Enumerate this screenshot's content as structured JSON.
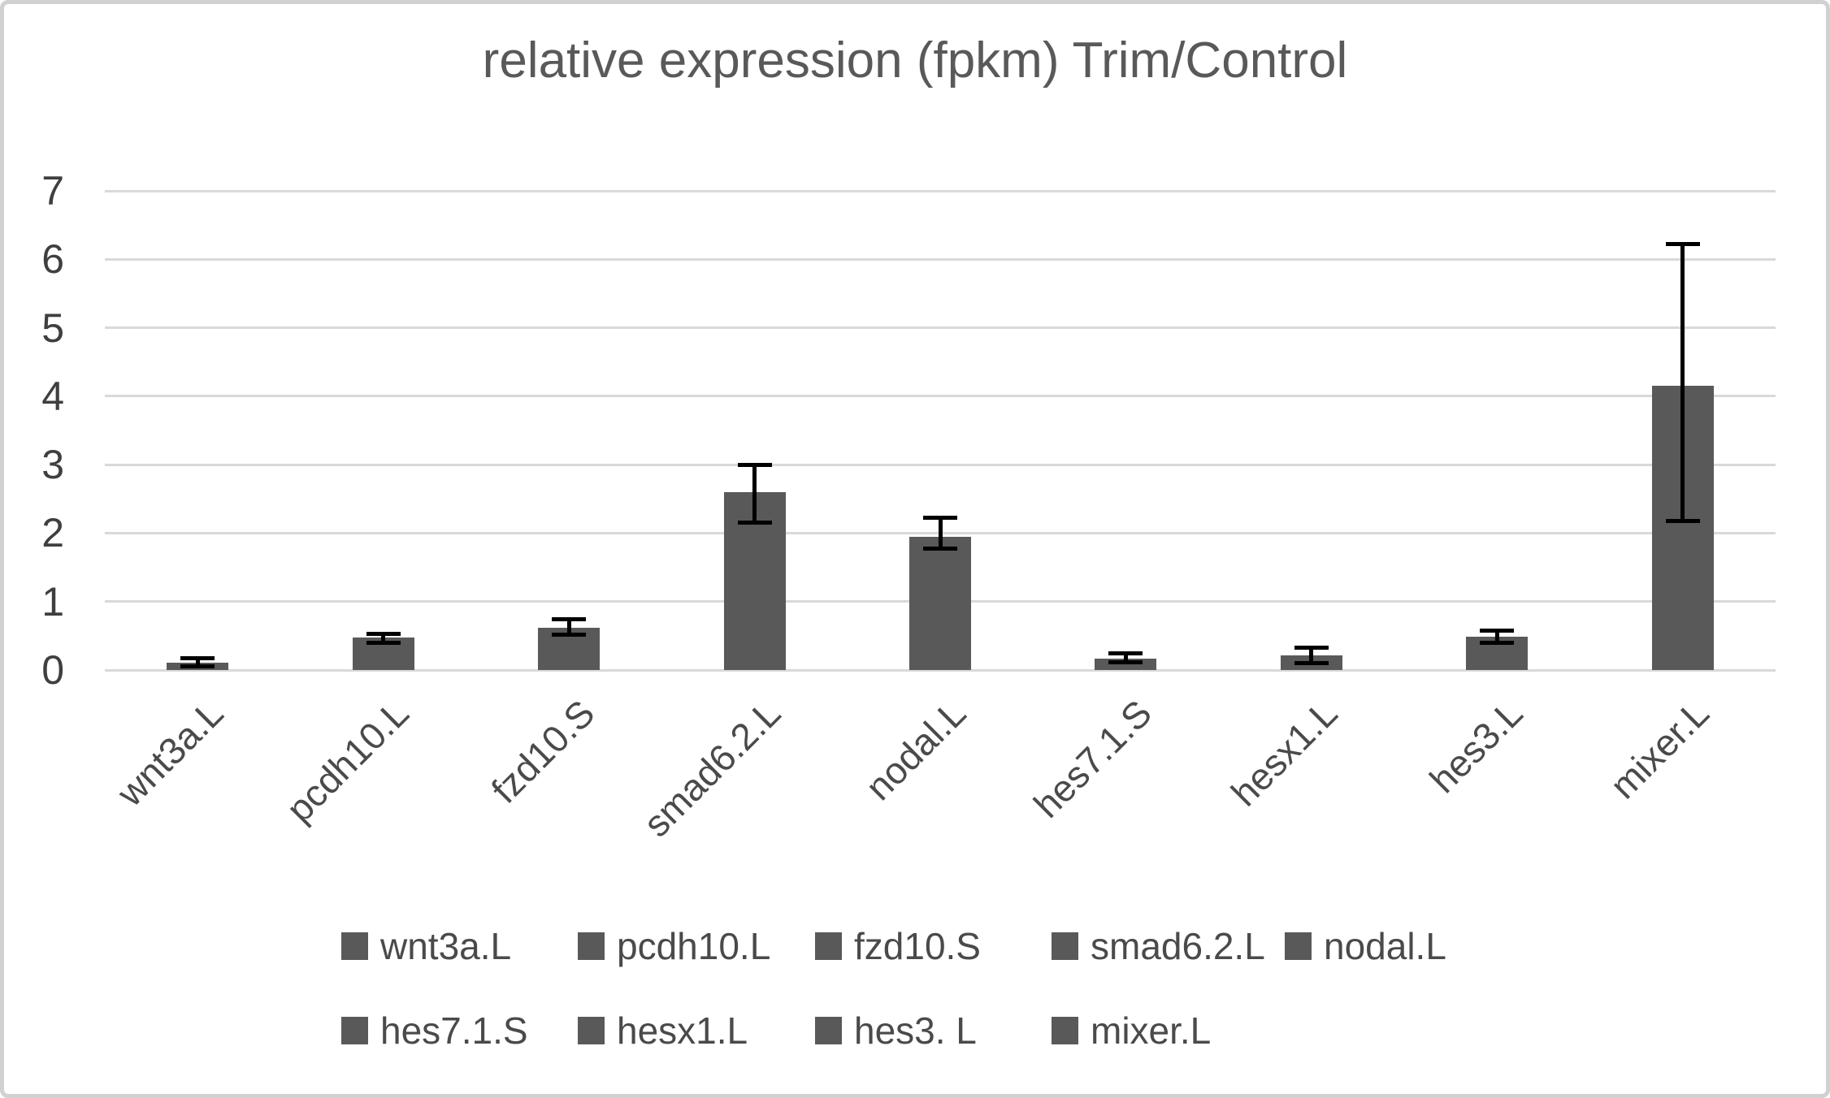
{
  "chart_data": {
    "type": "bar",
    "title": "relative expression (fpkm) Trim/Control",
    "categories": [
      "wnt3a.L",
      "pcdh10.L",
      "fzd10.S",
      "smad6.2.L",
      "nodal.L",
      "hes7.1.S",
      "hesx1.L",
      "hes3.L",
      "mixer.L"
    ],
    "values": [
      0.11,
      0.47,
      0.62,
      2.6,
      1.95,
      0.17,
      0.21,
      0.49,
      4.15
    ],
    "error_high": [
      0.17,
      0.53,
      0.74,
      3.0,
      2.22,
      0.24,
      0.33,
      0.58,
      6.22
    ],
    "error_low": [
      0.05,
      0.4,
      0.52,
      2.15,
      1.77,
      0.11,
      0.1,
      0.4,
      2.18
    ],
    "xlabel": "",
    "ylabel": "",
    "ylim": [
      0,
      7
    ],
    "ytick_labels": [
      "0",
      "1",
      "2",
      "3",
      "4",
      "5",
      "6",
      "7"
    ],
    "grid": true,
    "legend_position": "bottom",
    "legend_rows": [
      [
        "wnt3a.L",
        "pcdh10.L",
        "fzd10.S",
        "smad6.2.L",
        "nodal.L"
      ],
      [
        "hes7.1.S",
        "hesx1.L",
        "hes3. L",
        "mixer.L"
      ]
    ],
    "bar_color": "#595959",
    "error_bar_color": "#000000",
    "gridline_color": "#d9d9d9",
    "tick_text_color": "#3f3f3f",
    "label_text_color": "#4a4a4a",
    "title_color": "#595959"
  }
}
